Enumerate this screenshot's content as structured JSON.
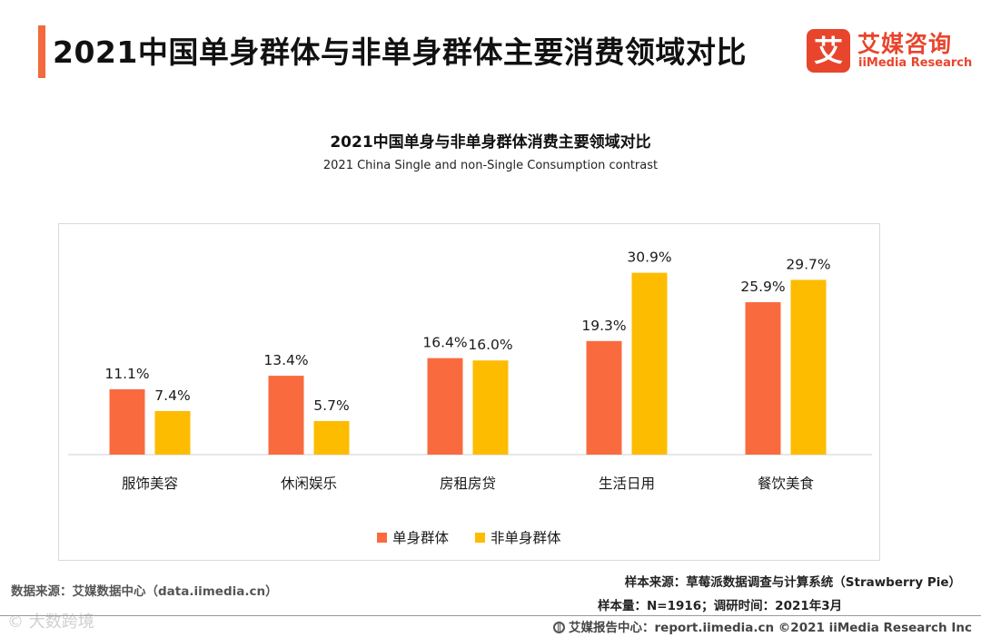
{
  "header": {
    "title": "2021中国单身群体与非单身群体主要消费领域对比"
  },
  "logo": {
    "mark": "艾",
    "name_cn": "艾媒咨询",
    "name_en": "iiMedia Research"
  },
  "colors": {
    "accent": "#f26a3d",
    "single": "#f96b3f",
    "non_single": "#fdbc00",
    "brand": "#e8452c"
  },
  "chart_data": {
    "type": "bar",
    "title": "2021中国单身与非单身群体消费主要领域对比",
    "subtitle": "2021 China Single and non-Single Consumption contrast",
    "categories": [
      "服饰美容",
      "休闲娱乐",
      "房租房贷",
      "生活日用",
      "餐饮美食"
    ],
    "series": [
      {
        "name": "单身群体",
        "values": [
          11.1,
          13.4,
          16.4,
          19.3,
          25.9
        ],
        "labels": [
          "11.1%",
          "13.4%",
          "16.4%",
          "19.3%",
          "25.9%"
        ]
      },
      {
        "name": "非单身群体",
        "values": [
          7.4,
          5.7,
          16.0,
          30.9,
          29.7
        ],
        "labels": [
          "7.4%",
          "5.7%",
          "16.0%",
          "30.9%",
          "29.7%"
        ]
      }
    ],
    "unit": "%",
    "ylim": [
      0,
      33
    ],
    "grid": false,
    "legend_position": "bottom-center"
  },
  "footer": {
    "source_left": "数据来源：艾媒数据中心（data.iimedia.cn）",
    "sample_source": "样本来源：草莓派数据调查与计算系统（Strawberry Pie）",
    "sample_size": "样本量：N=1916；调研时间：2021年3月",
    "bottom": "艾媒报告中心：report.iimedia.cn ©2021 iiMedia Research Inc",
    "watermark": "© 大数跨境"
  }
}
